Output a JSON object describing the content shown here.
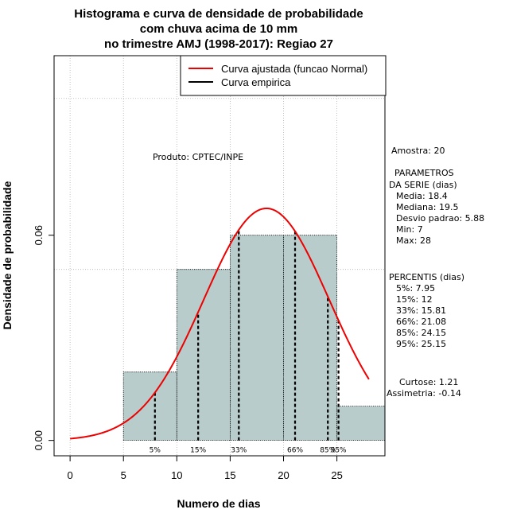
{
  "chart_data": {
    "type": "histogram",
    "title": "Histograma e curva de densidade de probabilidade",
    "subtitle_1": "com chuva acima de 10 mm",
    "subtitle_2": "no trimestre AMJ (1998-2017): Regiao 27",
    "xlabel": "Numero de dias",
    "ylabel": "Densidade de probabilidade",
    "xlim": [
      -1.5,
      29.5
    ],
    "ylim": [
      -0.0045,
      0.1125
    ],
    "x_ticks": [
      0,
      5,
      10,
      15,
      20,
      25
    ],
    "x_tick_labels": [
      "0",
      "5",
      "10",
      "15",
      "20",
      "25"
    ],
    "y_ticks": [
      0.0,
      0.06
    ],
    "y_tick_labels": [
      "0.00",
      "0.06"
    ],
    "grid_x": [
      0,
      5,
      10,
      15,
      20,
      25
    ],
    "grid_y": [
      0.05,
      0.1
    ],
    "bins": [
      {
        "from": 5,
        "to": 10,
        "density": 0.02
      },
      {
        "from": 10,
        "to": 15,
        "density": 0.05
      },
      {
        "from": 15,
        "to": 20,
        "density": 0.06
      },
      {
        "from": 20,
        "to": 25,
        "density": 0.06
      },
      {
        "from": 25,
        "to": 30,
        "density": 0.01
      }
    ],
    "normal_curve": {
      "mean": 18.4,
      "sd": 5.88,
      "x_from": 0,
      "x_to": 28
    },
    "percentile_lines": [
      {
        "label": "5%",
        "x": 7.95
      },
      {
        "label": "15%",
        "x": 12
      },
      {
        "label": "33%",
        "x": 15.81
      },
      {
        "label": "66%",
        "x": 21.08
      },
      {
        "label": "85%",
        "x": 24.15
      },
      {
        "label": "95%",
        "x": 25.15
      }
    ],
    "legend": {
      "position": "top-right",
      "entries": [
        {
          "label": "Curva ajustada (funcao Normal)",
          "color": "#ee0000"
        },
        {
          "label": "Curva empirica",
          "color": "#000000"
        }
      ]
    },
    "annotation": "Produto: CPTEC/INPE",
    "colors": {
      "bar_fill": "#b7cccb",
      "curve": "#ee0000",
      "grid": "#b0b0b0"
    }
  },
  "stats_panel": {
    "sample": "Amostra: 20",
    "params_title_1": "PARAMETROS",
    "params_title_2": "DA SERIE (dias)",
    "params": [
      "Media: 18.4",
      "Mediana: 19.5",
      "Desvio padrao: 5.88",
      "Min: 7",
      "Max: 28"
    ],
    "percentis_title": "PERCENTIS (dias)",
    "percentis": [
      "5%: 7.95",
      "15%: 12",
      "33%: 15.81",
      "66%: 21.08",
      "85%: 24.15",
      "95%: 25.15"
    ],
    "curtose": "Curtose: 1.21",
    "assimetria": "Assimetria: -0.14"
  }
}
